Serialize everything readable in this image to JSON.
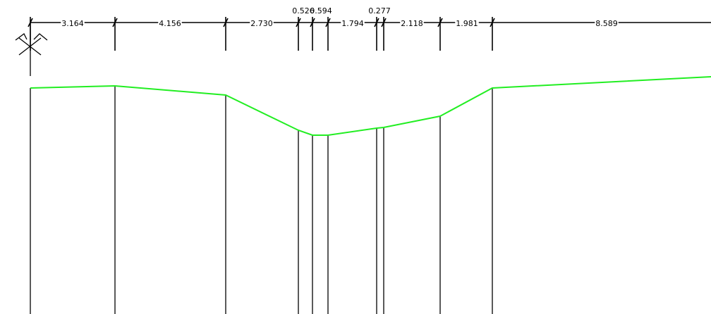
{
  "diagram": {
    "type": "cross-section-profile",
    "colors": {
      "background": "#ffffff",
      "lines": "#000000",
      "profile": "#22ee22"
    },
    "north_arrow_icon": "north-arrow-icon",
    "segments": [
      {
        "label": "3.164"
      },
      {
        "label": "4.156"
      },
      {
        "label": "2.730"
      },
      {
        "label": "0.526"
      },
      {
        "label": "0.594"
      },
      {
        "label": "1.794"
      },
      {
        "label": "0.277"
      },
      {
        "label": "2.118"
      },
      {
        "label": "1.981"
      },
      {
        "label": "8.589"
      }
    ]
  }
}
